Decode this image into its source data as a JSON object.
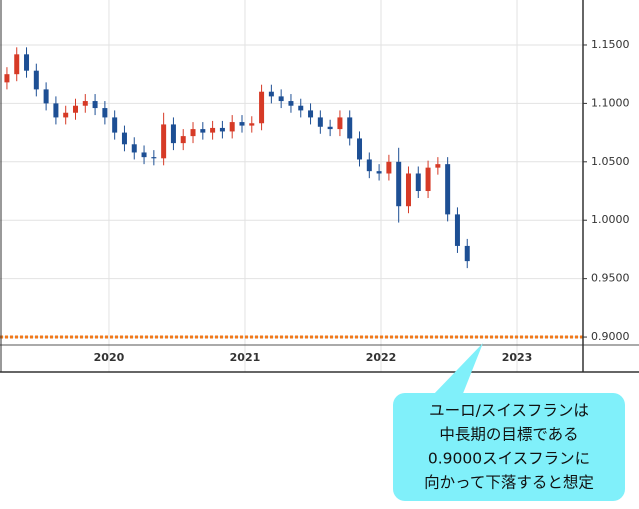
{
  "chart_data": {
    "type": "candlestick",
    "x": [
      2019.25,
      2019.322,
      2019.394,
      2019.466,
      2019.538,
      2019.61,
      2019.682,
      2019.754,
      2019.826,
      2019.898,
      2019.97,
      2020.042,
      2020.114,
      2020.186,
      2020.258,
      2020.33,
      2020.402,
      2020.474,
      2020.546,
      2020.618,
      2020.69,
      2020.762,
      2020.834,
      2020.906,
      2020.978,
      2021.05,
      2021.122,
      2021.194,
      2021.266,
      2021.338,
      2021.41,
      2021.482,
      2021.554,
      2021.626,
      2021.698,
      2021.77,
      2021.842,
      2021.914,
      2021.986,
      2022.058,
      2022.13,
      2022.202,
      2022.274,
      2022.346,
      2022.418,
      2022.49,
      2022.562,
      2022.634
    ],
    "open": [
      1.118,
      1.125,
      1.142,
      1.128,
      1.112,
      1.1,
      1.088,
      1.092,
      1.098,
      1.102,
      1.096,
      1.088,
      1.075,
      1.065,
      1.058,
      1.054,
      1.053,
      1.082,
      1.066,
      1.072,
      1.078,
      1.075,
      1.079,
      1.076,
      1.084,
      1.081,
      1.083,
      1.11,
      1.106,
      1.102,
      1.098,
      1.094,
      1.088,
      1.08,
      1.078,
      1.088,
      1.07,
      1.052,
      1.042,
      1.04,
      1.05,
      1.012,
      1.04,
      1.025,
      1.045,
      1.048,
      1.005,
      0.978
    ],
    "high": [
      1.131,
      1.148,
      1.148,
      1.134,
      1.118,
      1.106,
      1.098,
      1.104,
      1.108,
      1.108,
      1.102,
      1.094,
      1.081,
      1.071,
      1.064,
      1.06,
      1.092,
      1.088,
      1.078,
      1.084,
      1.084,
      1.085,
      1.085,
      1.09,
      1.09,
      1.089,
      1.116,
      1.116,
      1.112,
      1.108,
      1.104,
      1.1,
      1.094,
      1.086,
      1.094,
      1.094,
      1.076,
      1.058,
      1.048,
      1.056,
      1.062,
      1.046,
      1.046,
      1.051,
      1.054,
      1.054,
      1.011,
      0.984
    ],
    "low": [
      1.112,
      1.119,
      1.122,
      1.106,
      1.094,
      1.082,
      1.082,
      1.086,
      1.092,
      1.09,
      1.082,
      1.069,
      1.059,
      1.052,
      1.048,
      1.047,
      1.047,
      1.06,
      1.06,
      1.066,
      1.069,
      1.069,
      1.07,
      1.07,
      1.075,
      1.075,
      1.077,
      1.1,
      1.096,
      1.092,
      1.088,
      1.082,
      1.074,
      1.072,
      1.072,
      1.064,
      1.046,
      1.036,
      1.034,
      1.034,
      0.998,
      1.006,
      1.019,
      1.019,
      1.039,
      0.999,
      0.972,
      0.959
    ],
    "close": [
      1.125,
      1.142,
      1.128,
      1.112,
      1.1,
      1.088,
      1.092,
      1.098,
      1.102,
      1.096,
      1.088,
      1.075,
      1.065,
      1.058,
      1.054,
      1.053,
      1.082,
      1.066,
      1.072,
      1.078,
      1.075,
      1.079,
      1.076,
      1.084,
      1.081,
      1.083,
      1.11,
      1.106,
      1.102,
      1.098,
      1.094,
      1.088,
      1.08,
      1.078,
      1.088,
      1.07,
      1.052,
      1.042,
      1.04,
      1.05,
      1.012,
      1.04,
      1.025,
      1.045,
      1.048,
      1.005,
      0.978,
      0.965
    ],
    "up_color": "#d63a26",
    "down_color": "#1d4f94",
    "xlim": [
      2019.199,
      2023.485
    ],
    "xticks": [
      2020,
      2021,
      2022,
      2023
    ],
    "ylim": [
      0.8932,
      1.1885
    ],
    "yticks": [
      {
        "value": 0.9,
        "label": "0.9000"
      },
      {
        "value": 0.95,
        "label": "0.9500"
      },
      {
        "value": 1.0,
        "label": "1.0000"
      },
      {
        "value": 1.05,
        "label": "1.0500"
      },
      {
        "value": 1.1,
        "label": "1.1000"
      },
      {
        "value": 1.15,
        "label": "1.1500"
      }
    ],
    "grid": true,
    "target_line": {
      "value": 0.9,
      "color": "#f07a1c"
    },
    "callout": {
      "lines": [
        "ユーロ/スイスフランは",
        "中長期の目標である",
        "0.9000スイスフランに",
        "向かって下落すると想定"
      ],
      "color": "#80f0fa"
    }
  }
}
